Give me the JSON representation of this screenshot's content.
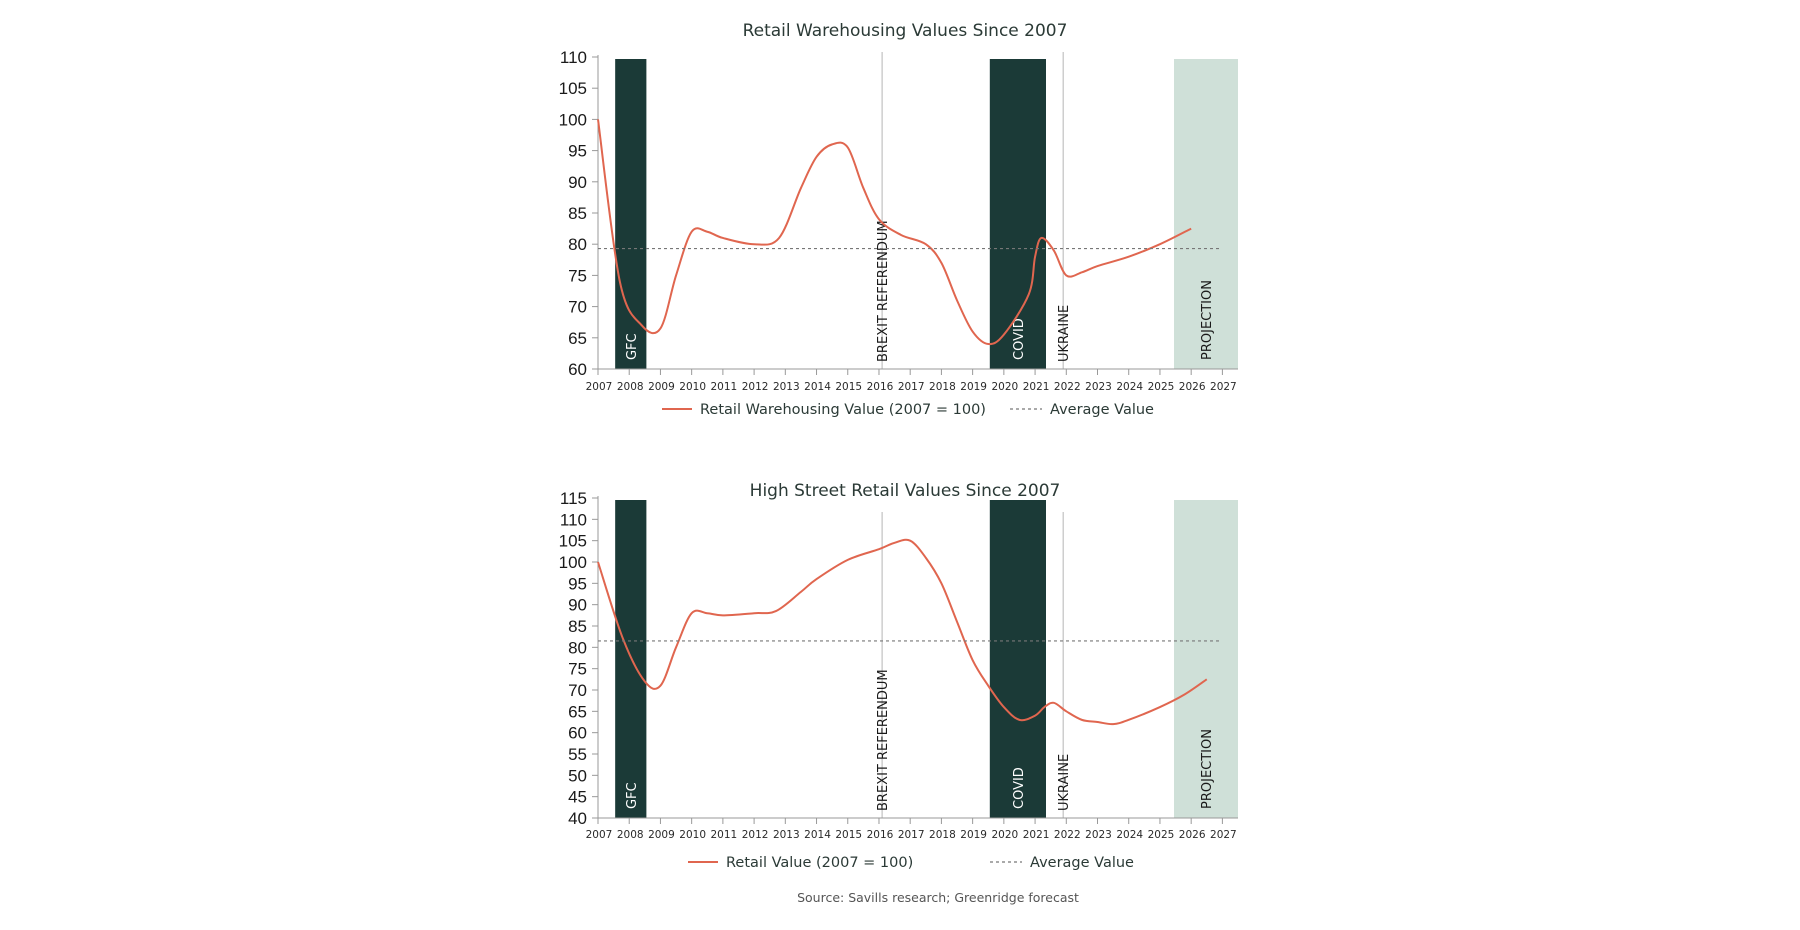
{
  "colors": {
    "line": "#e0664f",
    "event_dark": "#1b3a37",
    "projection": "#cfe0d8",
    "average": "#777777",
    "axis": "#999999",
    "event_line": "#b5b5b5"
  },
  "source": "Source: Savills research; Greenridge forecast",
  "chart_data": [
    {
      "type": "line",
      "title": "Retail Warehousing Values Since 2007",
      "xlabel": "",
      "ylabel": "",
      "x": [
        2007,
        2008,
        2009,
        2010,
        2011,
        2012,
        2013,
        2014,
        2015,
        2016,
        2017,
        2018,
        2019,
        2020,
        2021,
        2022,
        2023,
        2024,
        2025,
        2026,
        2027
      ],
      "x_tick_labels": [
        "2007",
        "2008",
        "2009",
        "2010",
        "2011",
        "2012",
        "2013",
        "2014",
        "2015",
        "2016",
        "2017",
        "2018",
        "2019",
        "2020",
        "2021",
        "2022",
        "2023",
        "2024",
        "2025",
        "2026",
        "2027"
      ],
      "ylim": [
        60,
        110
      ],
      "y_ticks": [
        60,
        65,
        70,
        75,
        80,
        85,
        90,
        95,
        100,
        105,
        110
      ],
      "y_tick_labels": [
        "60",
        "65",
        "70",
        "75",
        "80",
        "85",
        "90",
        "95",
        "100",
        "105",
        "110"
      ],
      "series": [
        {
          "name": "Retail Warehousing Value (2007 = 100)",
          "points": [
            [
              2007,
              100
            ],
            [
              2007.7,
              74
            ],
            [
              2008.4,
              67
            ],
            [
              2009,
              66.5
            ],
            [
              2009.5,
              75
            ],
            [
              2010,
              82
            ],
            [
              2010.5,
              82
            ],
            [
              2011,
              81
            ],
            [
              2012,
              80
            ],
            [
              2012.8,
              81
            ],
            [
              2013.5,
              89
            ],
            [
              2014,
              94
            ],
            [
              2014.5,
              96
            ],
            [
              2015,
              95.5
            ],
            [
              2015.5,
              89
            ],
            [
              2016,
              84
            ],
            [
              2016.7,
              81.5
            ],
            [
              2017.5,
              80
            ],
            [
              2018,
              77
            ],
            [
              2018.5,
              71
            ],
            [
              2019,
              66
            ],
            [
              2019.5,
              64
            ],
            [
              2020,
              65.5
            ],
            [
              2020.8,
              72
            ],
            [
              2021,
              78
            ],
            [
              2021.2,
              81
            ],
            [
              2021.6,
              79
            ],
            [
              2022,
              75
            ],
            [
              2022.5,
              75.5
            ],
            [
              2023,
              76.5
            ],
            [
              2024,
              78
            ],
            [
              2025,
              80
            ],
            [
              2026,
              82.5
            ]
          ],
          "style": "solid"
        },
        {
          "name": "Average Value",
          "points": [
            [
              2007,
              79.3
            ],
            [
              2026.9,
              79.3
            ]
          ],
          "style": "dashed"
        }
      ],
      "legend": [
        "Retail Warehousing Value (2007 = 100)",
        "Average Value"
      ],
      "bands": [
        {
          "label": "GFC",
          "x0": 2007.55,
          "x1": 2008.55,
          "style": "dark"
        },
        {
          "label": "COVID",
          "x0": 2019.55,
          "x1": 2021.35,
          "style": "dark"
        },
        {
          "label": "PROJECTION",
          "x0": 2025.45,
          "x1": 2027.5,
          "style": "light"
        }
      ],
      "event_lines": [
        {
          "label": "BREXIT REFERENDUM",
          "x": 2016.1
        },
        {
          "label": "UKRAINE",
          "x": 2021.9
        }
      ]
    },
    {
      "type": "line",
      "title": "High Street Retail Values Since 2007",
      "xlabel": "",
      "ylabel": "",
      "x": [
        2007,
        2008,
        2009,
        2010,
        2011,
        2012,
        2013,
        2014,
        2015,
        2016,
        2017,
        2018,
        2019,
        2020,
        2021,
        2022,
        2023,
        2024,
        2025,
        2026,
        2027
      ],
      "x_tick_labels": [
        "2007",
        "2008",
        "2009",
        "2010",
        "2011",
        "2012",
        "2013",
        "2014",
        "2015",
        "2016",
        "2017",
        "2018",
        "2019",
        "2020",
        "2021",
        "2022",
        "2023",
        "2024",
        "2025",
        "2026",
        "2027"
      ],
      "ylim": [
        40,
        115
      ],
      "y_ticks": [
        40,
        45,
        50,
        55,
        60,
        65,
        70,
        75,
        80,
        85,
        90,
        95,
        100,
        105,
        110,
        115
      ],
      "y_tick_labels": [
        "40",
        "45",
        "50",
        "55",
        "60",
        "65",
        "70",
        "75",
        "80",
        "85",
        "90",
        "95",
        "100",
        "105",
        "110",
        "115"
      ],
      "series": [
        {
          "name": "Retail Value (2007 = 100)",
          "points": [
            [
              2007,
              100
            ],
            [
              2007.8,
              82
            ],
            [
              2008.5,
              72
            ],
            [
              2009,
              71
            ],
            [
              2009.5,
              80
            ],
            [
              2010,
              88
            ],
            [
              2010.5,
              88
            ],
            [
              2011,
              87.5
            ],
            [
              2012,
              88
            ],
            [
              2012.7,
              88.5
            ],
            [
              2013.5,
              93
            ],
            [
              2014,
              96
            ],
            [
              2015,
              100.5
            ],
            [
              2016,
              103
            ],
            [
              2016.5,
              104.5
            ],
            [
              2017,
              105
            ],
            [
              2017.5,
              101
            ],
            [
              2018,
              95
            ],
            [
              2018.5,
              86
            ],
            [
              2019,
              77
            ],
            [
              2019.5,
              71
            ],
            [
              2020,
              66
            ],
            [
              2020.5,
              63
            ],
            [
              2021,
              64
            ],
            [
              2021.3,
              66
            ],
            [
              2021.6,
              67
            ],
            [
              2022,
              65
            ],
            [
              2022.5,
              63
            ],
            [
              2023,
              62.5
            ],
            [
              2023.5,
              62
            ],
            [
              2024,
              63
            ],
            [
              2025,
              66
            ],
            [
              2025.8,
              69
            ],
            [
              2026.5,
              72.5
            ]
          ],
          "style": "solid"
        },
        {
          "name": "Average Value",
          "points": [
            [
              2007,
              81.5
            ],
            [
              2026.9,
              81.5
            ]
          ],
          "style": "dashed"
        }
      ],
      "legend": [
        "Retail Value (2007 = 100)",
        "Average Value"
      ],
      "bands": [
        {
          "label": "GFC",
          "x0": 2007.55,
          "x1": 2008.55,
          "style": "dark"
        },
        {
          "label": "COVID",
          "x0": 2019.55,
          "x1": 2021.35,
          "style": "dark"
        },
        {
          "label": "PROJECTION",
          "x0": 2025.45,
          "x1": 2027.5,
          "style": "light"
        }
      ],
      "event_lines": [
        {
          "label": "BREXIT REFERENDUM",
          "x": 2016.1
        },
        {
          "label": "UKRAINE",
          "x": 2021.9
        }
      ]
    }
  ]
}
